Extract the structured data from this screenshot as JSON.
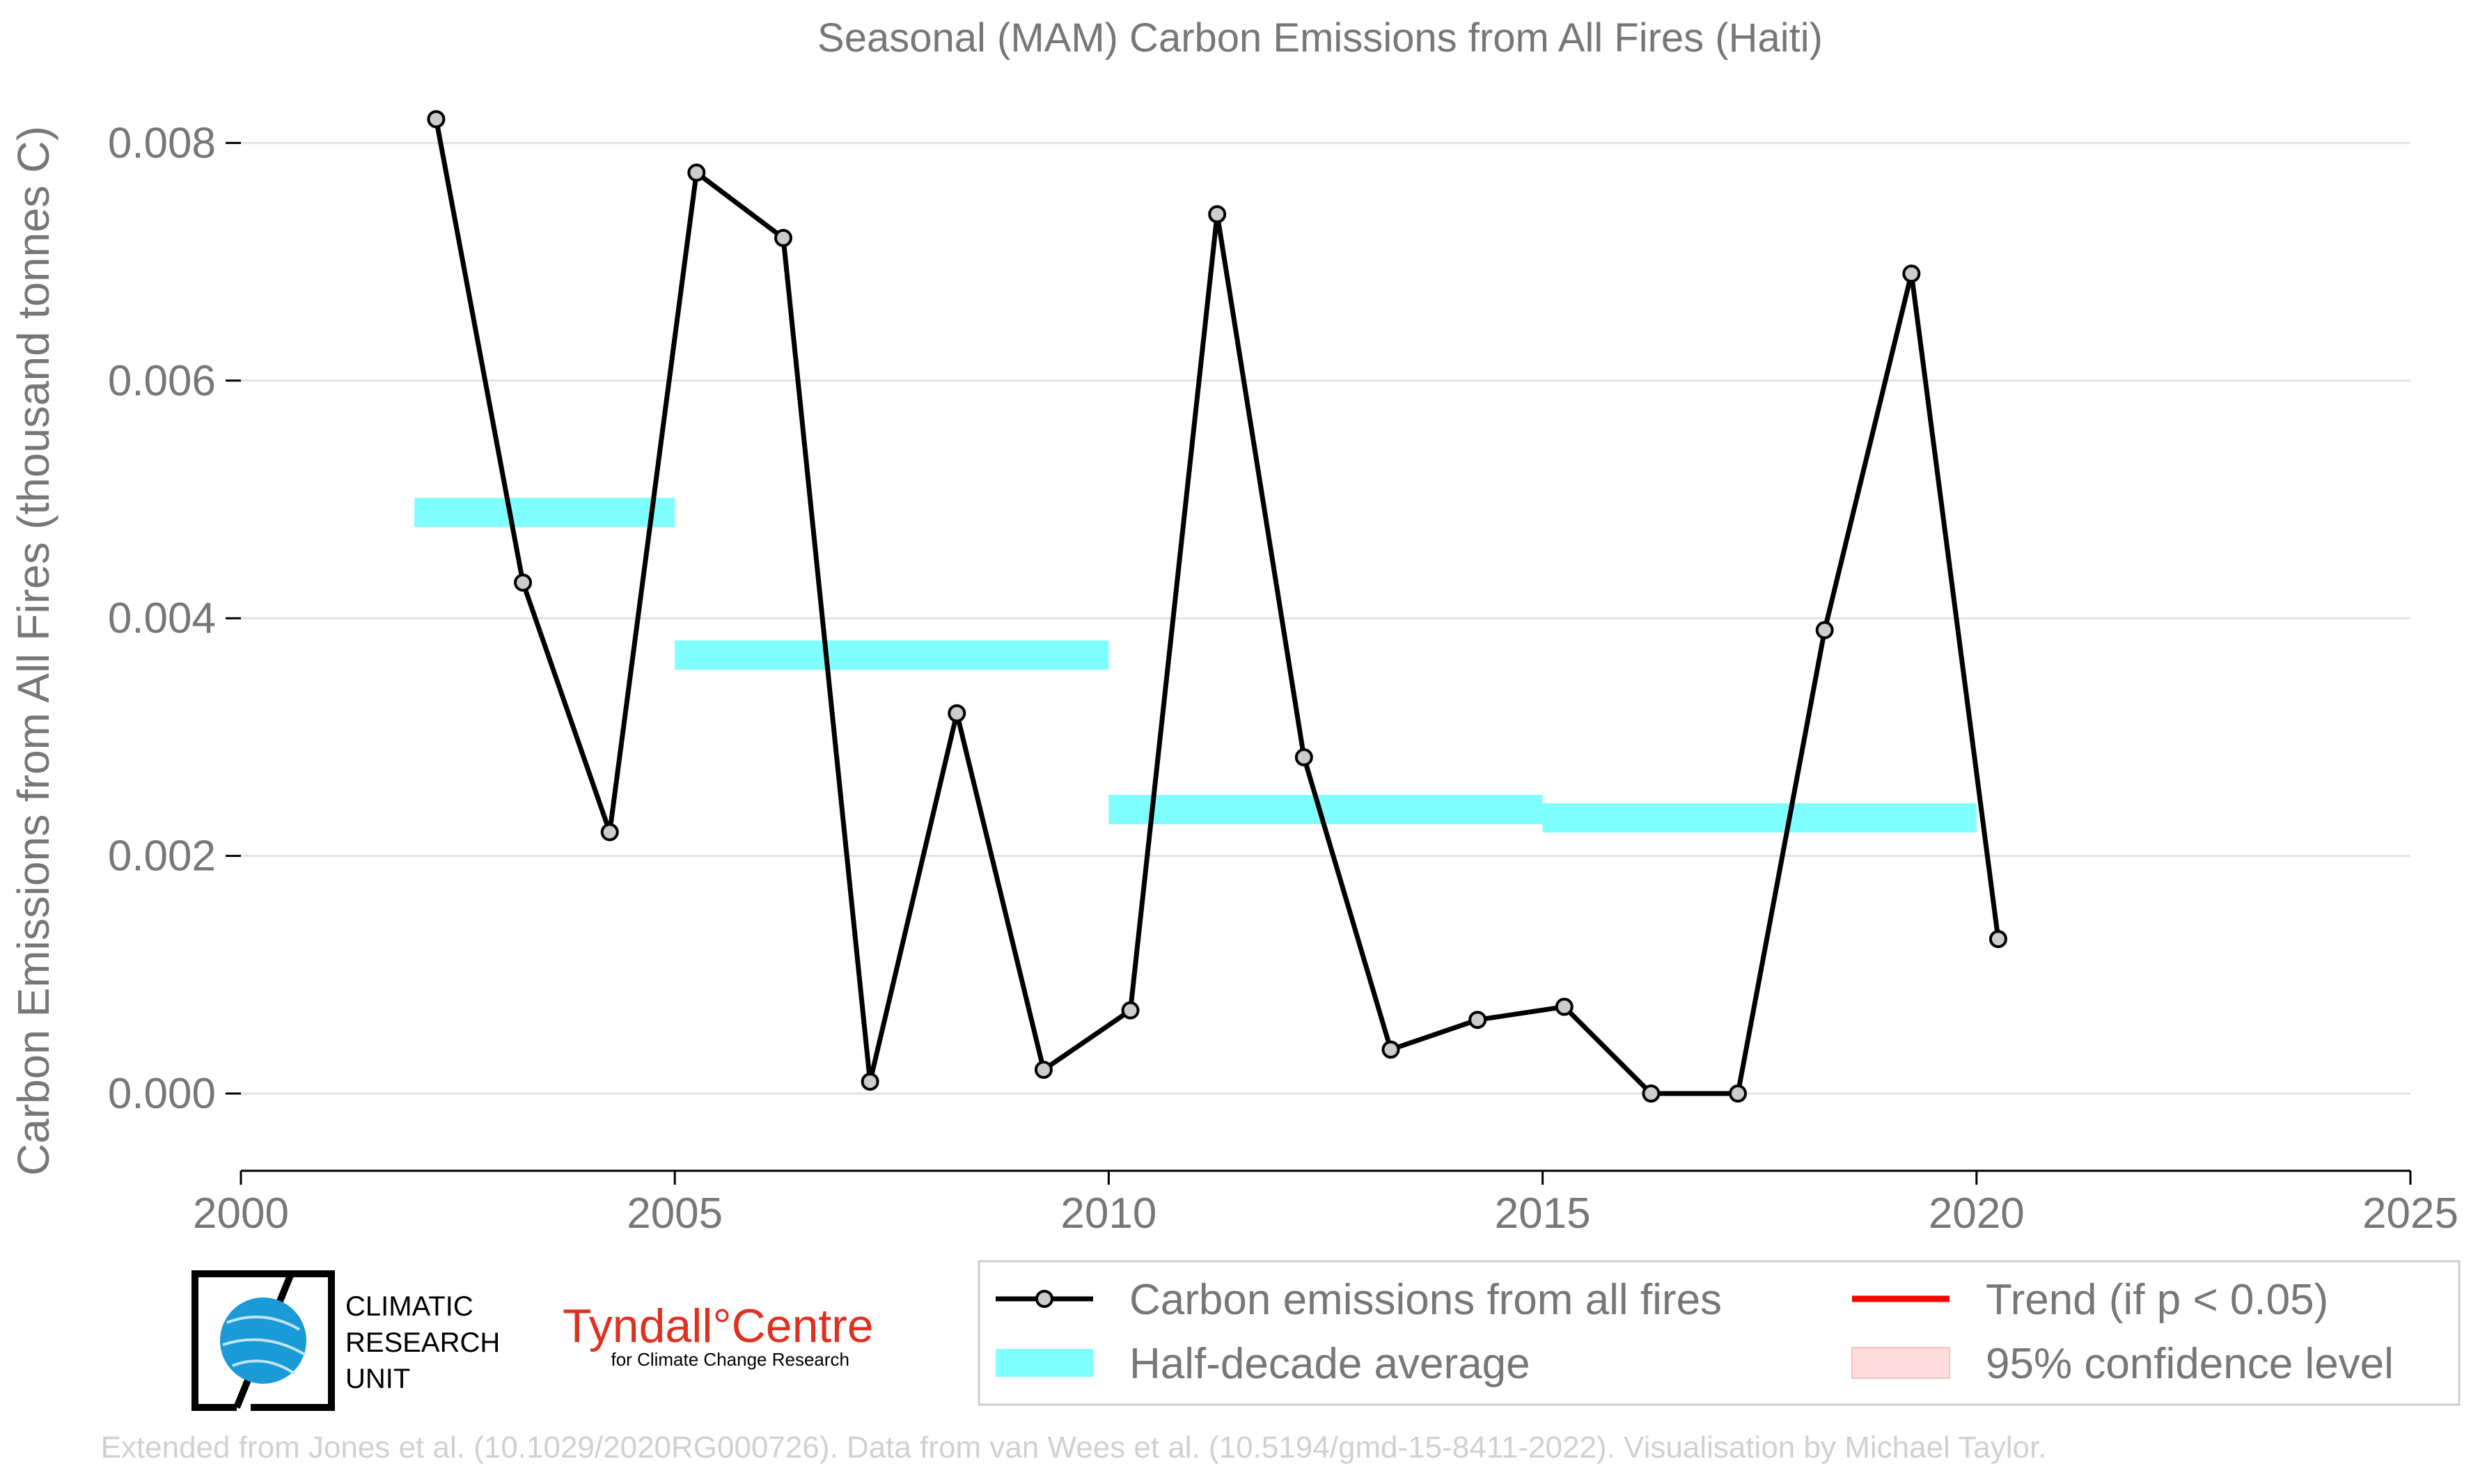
{
  "chart_data": {
    "type": "line",
    "title": "Seasonal (MAM) Carbon Emissions from All Fires (Haiti)",
    "xlabel": "",
    "ylabel": "Carbon Emissions from All Fires (thousand tonnes C)",
    "xlim": [
      2000,
      2025
    ],
    "ylim": [
      -0.00065,
      0.0085
    ],
    "x_ticks": [
      2000,
      2005,
      2010,
      2015,
      2020,
      2025
    ],
    "y_ticks": [
      0.0,
      0.002,
      0.004,
      0.006,
      0.008
    ],
    "y_tick_labels": [
      "0.000",
      "0.002",
      "0.004",
      "0.006",
      "0.008"
    ],
    "grid": "horizontal",
    "series": [
      {
        "name": "Carbon emissions from all fires",
        "color": "#000000",
        "x": [
          2002.25,
          2003.25,
          2004.25,
          2005.25,
          2006.25,
          2007.25,
          2008.25,
          2009.25,
          2010.25,
          2011.25,
          2012.25,
          2013.25,
          2014.25,
          2015.25,
          2016.25,
          2017.25,
          2018.25,
          2019.25,
          2020.25
        ],
        "values": [
          0.0082,
          0.0043,
          0.0022,
          0.00775,
          0.0072,
          0.0001,
          0.0032,
          0.0002,
          0.0007,
          0.0074,
          0.00283,
          0.00037,
          0.00062,
          0.00073,
          0.0,
          0.0,
          0.0039,
          0.0069,
          0.0013
        ]
      },
      {
        "name": "Half-decade average",
        "color": "#7fffff",
        "segments": [
          {
            "x0": 2002,
            "x1": 2005,
            "value": 0.00489
          },
          {
            "x0": 2005,
            "x1": 2010,
            "value": 0.00369
          },
          {
            "x0": 2010,
            "x1": 2015,
            "value": 0.00239
          },
          {
            "x0": 2015,
            "x1": 2020,
            "value": 0.00232
          }
        ]
      }
    ],
    "legend": {
      "position": "bottom-right",
      "entries": [
        {
          "label": "Carbon emissions from all fires",
          "color": "#000000",
          "kind": "line-marker"
        },
        {
          "label": "Trend (if p < 0.05)",
          "color": "#ff0000",
          "kind": "line"
        },
        {
          "label": "Half-decade average",
          "color": "#7fffff",
          "kind": "band"
        },
        {
          "label": "95% confidence level",
          "color": "#ffdddd",
          "kind": "patch"
        }
      ]
    }
  },
  "logos": {
    "cru": "CLIMATIC\nRESEARCH\nUNIT",
    "tyndall": "Tyndall°Centre",
    "tyndall_sub": "for Climate Change Research"
  },
  "credit": "Extended from Jones et al. (10.1029/2020RG000726). Data from van Wees et al. (10.5194/gmd-15-8411-2022). Visualisation by Michael Taylor."
}
